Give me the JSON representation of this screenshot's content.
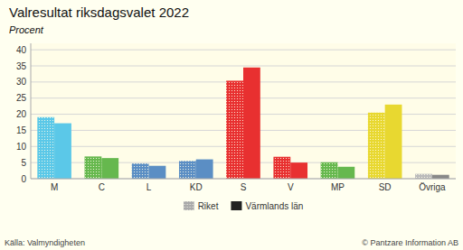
{
  "chart_data": {
    "type": "bar",
    "title": "Valresultat riksdagsvalet 2022",
    "subtitle": "Procent",
    "categories": [
      "M",
      "C",
      "L",
      "KD",
      "S",
      "V",
      "MP",
      "SD",
      "Övriga"
    ],
    "series": [
      {
        "name": "Riket",
        "color": "#aaaaaa",
        "colors": [
          "#5bc8e8",
          "#66b84e",
          "#5b8ec4",
          "#5b8ec4",
          "#e83030",
          "#e83030",
          "#66b84e",
          "#e8d830",
          "#bbbbbb"
        ],
        "values": [
          19.1,
          6.9,
          4.7,
          5.5,
          30.4,
          6.8,
          5.1,
          20.5,
          1.5
        ]
      },
      {
        "name": "Värmlands län",
        "color": "#222222",
        "colors": [
          "#5bc8e8",
          "#66b84e",
          "#5b8ec4",
          "#5b8ec4",
          "#e83030",
          "#e83030",
          "#66b84e",
          "#e8d830",
          "#888888"
        ],
        "values": [
          17.2,
          6.4,
          4.0,
          6.0,
          34.5,
          5.0,
          3.7,
          23.0,
          1.2
        ]
      }
    ],
    "ylim": [
      0,
      42
    ],
    "yticks": [
      0,
      5,
      10,
      15,
      20,
      25,
      30,
      35,
      40
    ],
    "grid": true,
    "legend": "bottom",
    "annotations": [
      "Källa: Valmyndigheten",
      "© Pantzare Information AB"
    ]
  }
}
